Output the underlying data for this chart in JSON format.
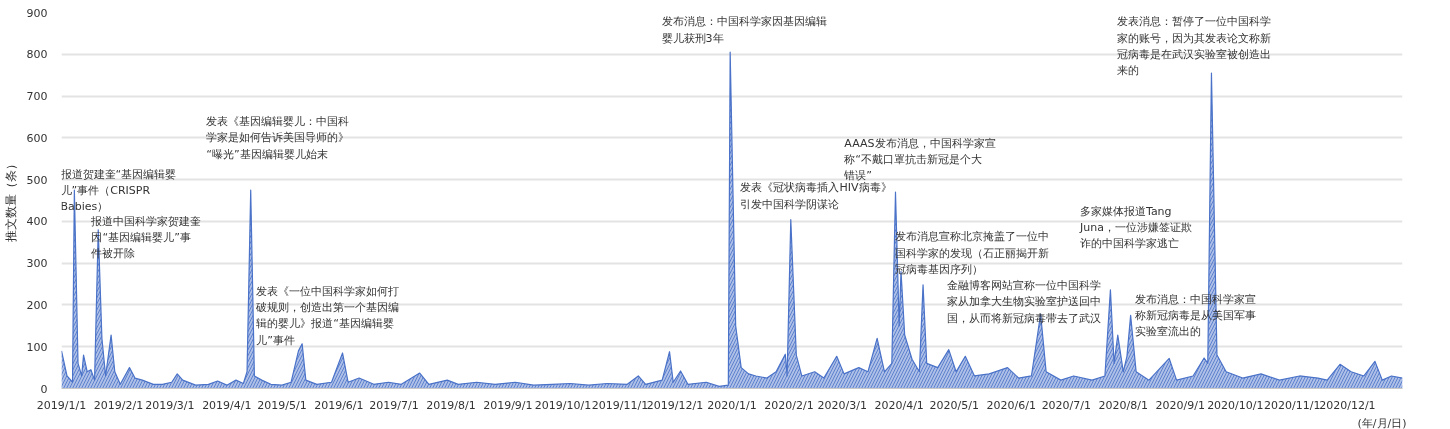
{
  "chart_data": {
    "type": "area",
    "xlabel": "(年/月/日)",
    "ylabel": "推文数量（条）",
    "color": "#4a72c8",
    "grid": "y",
    "x": [
      "2019-01-01",
      "2019-01-04",
      "2019-01-07",
      "2019-01-08",
      "2019-01-10",
      "2019-01-12",
      "2019-01-13",
      "2019-01-15",
      "2019-01-17",
      "2019-01-19",
      "2019-01-21",
      "2019-01-23",
      "2019-01-25",
      "2019-01-28",
      "2019-01-30",
      "2019-02-02",
      "2019-02-07",
      "2019-02-10",
      "2019-02-14",
      "2019-02-20",
      "2019-02-25",
      "2019-03-02",
      "2019-03-05",
      "2019-03-08",
      "2019-03-15",
      "2019-03-22",
      "2019-03-27",
      "2019-04-01",
      "2019-04-06",
      "2019-04-10",
      "2019-04-12",
      "2019-04-14",
      "2019-04-16",
      "2019-04-20",
      "2019-04-25",
      "2019-05-01",
      "2019-05-06",
      "2019-05-10",
      "2019-05-12",
      "2019-05-14",
      "2019-05-20",
      "2019-05-28",
      "2019-06-03",
      "2019-06-06",
      "2019-06-12",
      "2019-06-20",
      "2019-06-28",
      "2019-07-05",
      "2019-07-15",
      "2019-07-20",
      "2019-07-30",
      "2019-08-05",
      "2019-08-15",
      "2019-08-25",
      "2019-09-05",
      "2019-09-15",
      "2019-09-25",
      "2019-10-05",
      "2019-10-15",
      "2019-10-25",
      "2019-11-05",
      "2019-11-11",
      "2019-11-15",
      "2019-11-24",
      "2019-11-28",
      "2019-11-30",
      "2019-12-04",
      "2019-12-08",
      "2019-12-18",
      "2019-12-25",
      "2019-12-30",
      "2019-12-31",
      "2020-01-03",
      "2020-01-06",
      "2020-01-10",
      "2020-01-14",
      "2020-01-20",
      "2020-01-25",
      "2020-01-30",
      "2020-01-31",
      "2020-02-02",
      "2020-02-05",
      "2020-02-08",
      "2020-02-15",
      "2020-02-20",
      "2020-02-27",
      "2020-03-02",
      "2020-03-10",
      "2020-03-15",
      "2020-03-20",
      "2020-03-24",
      "2020-03-28",
      "2020-03-30",
      "2020-04-01",
      "2020-04-02",
      "2020-04-04",
      "2020-04-08",
      "2020-04-12",
      "2020-04-14",
      "2020-04-16",
      "2020-04-22",
      "2020-04-28",
      "2020-05-02",
      "2020-05-07",
      "2020-05-12",
      "2020-05-20",
      "2020-05-30",
      "2020-06-05",
      "2020-06-12",
      "2020-06-17",
      "2020-06-20",
      "2020-06-28",
      "2020-07-05",
      "2020-07-15",
      "2020-07-22",
      "2020-07-25",
      "2020-07-27",
      "2020-07-29",
      "2020-08-01",
      "2020-08-03",
      "2020-08-05",
      "2020-08-08",
      "2020-08-15",
      "2020-08-26",
      "2020-08-30",
      "2020-09-08",
      "2020-09-14",
      "2020-09-16",
      "2020-09-18",
      "2020-09-21",
      "2020-09-26",
      "2020-10-05",
      "2020-10-15",
      "2020-10-25",
      "2020-11-05",
      "2020-11-15",
      "2020-11-20",
      "2020-11-27",
      "2020-12-03",
      "2020-12-10",
      "2020-12-16",
      "2020-12-20",
      "2020-12-25",
      "2020-12-31"
    ],
    "values": [
      90,
      30,
      15,
      475,
      60,
      30,
      80,
      40,
      45,
      20,
      380,
      120,
      30,
      128,
      40,
      10,
      50,
      25,
      20,
      10,
      10,
      15,
      35,
      20,
      8,
      10,
      18,
      8,
      20,
      12,
      40,
      475,
      30,
      20,
      10,
      8,
      15,
      90,
      107,
      20,
      10,
      15,
      85,
      15,
      25,
      10,
      15,
      10,
      37,
      10,
      20,
      10,
      15,
      10,
      15,
      8,
      10,
      12,
      8,
      12,
      10,
      30,
      10,
      20,
      88,
      15,
      42,
      10,
      15,
      5,
      8,
      805,
      150,
      50,
      35,
      30,
      25,
      40,
      82,
      30,
      404,
      80,
      30,
      40,
      25,
      77,
      35,
      50,
      40,
      120,
      40,
      60,
      470,
      150,
      280,
      128,
      70,
      40,
      248,
      60,
      50,
      93,
      40,
      77,
      30,
      35,
      50,
      25,
      30,
      178,
      40,
      20,
      30,
      20,
      30,
      236,
      60,
      128,
      40,
      77,
      175,
      40,
      20,
      72,
      20,
      30,
      73,
      60,
      755,
      80,
      40,
      25,
      35,
      20,
      30,
      25,
      20,
      58,
      40,
      30,
      65,
      20,
      30,
      25
    ],
    "xlim": [
      "2019-01-01",
      "2020-12-31"
    ],
    "xticks": [
      {
        "value": "2019-01-01",
        "label": "2019/1/1"
      },
      {
        "value": "2019-02-01",
        "label": "2019/2/1"
      },
      {
        "value": "2019-03-01",
        "label": "2019/3/1"
      },
      {
        "value": "2019-04-01",
        "label": "2019/4/1"
      },
      {
        "value": "2019-05-01",
        "label": "2019/5/1"
      },
      {
        "value": "2019-06-01",
        "label": "2019/6/1"
      },
      {
        "value": "2019-07-01",
        "label": "2019/7/1"
      },
      {
        "value": "2019-08-01",
        "label": "2019/8/1"
      },
      {
        "value": "2019-09-01",
        "label": "2019/9/1"
      },
      {
        "value": "2019-10-01",
        "label": "2019/10/1"
      },
      {
        "value": "2019-11-01",
        "label": "2019/11/1"
      },
      {
        "value": "2019-12-01",
        "label": "2019/12/1"
      },
      {
        "value": "2020-01-01",
        "label": "2020/1/1"
      },
      {
        "value": "2020-02-01",
        "label": "2020/2/1"
      },
      {
        "value": "2020-03-01",
        "label": "2020/3/1"
      },
      {
        "value": "2020-04-01",
        "label": "2020/4/1"
      },
      {
        "value": "2020-05-01",
        "label": "2020/5/1"
      },
      {
        "value": "2020-06-01",
        "label": "2020/6/1"
      },
      {
        "value": "2020-07-01",
        "label": "2020/7/1"
      },
      {
        "value": "2020-08-01",
        "label": "2020/8/1"
      },
      {
        "value": "2020-09-01",
        "label": "2020/9/1"
      },
      {
        "value": "2020-10-01",
        "label": "2020/10/1"
      },
      {
        "value": "2020-11-01",
        "label": "2020/11/1"
      },
      {
        "value": "2020-12-01",
        "label": "2020/12/1"
      }
    ],
    "ylim": [
      0,
      900
    ],
    "yticks": [
      0,
      100,
      200,
      300,
      400,
      500,
      600,
      700,
      800,
      900
    ],
    "annotations": [
      "报道贺建奎“基因编辑婴儿”事件（CRISPR Babies）",
      "报道中国科学家贺建奎因“基因编辑婴儿”事件被开除",
      "发表《基因编辑婴儿：中国科学家是如何告诉美国导师的》“曝光”基因编辑婴儿始末",
      "发表《一位中国科学家如何打破规则，创造出第一个基因编辑的婴儿》报道“基因编辑婴儿”事件",
      "发布消息：中国科学家因基因编辑婴儿获刑3年",
      "发表《冠状病毒插入HIV病毒》引发中国科学阴谋论",
      "AAAS发布消息，中国科学家宣称“不戴口罩抗击新冠是个大错误”",
      "发布消息宣称北京掩盖了一位中国科学家的发现（石正丽揭开新冠病毒基因序列）",
      "金融博客网站宣称一位中国科学家从加拿大生物实验室护送回中国，从而将新冠病毒带去了武汉",
      "多家媒体报道Tang Juna，一位涉嫌签证欺诈的中国科学家逃亡",
      "发布消息：中国科学家宣称新冠病毒是从美国军事实验室流出的",
      "发表消息：暂停了一位中国科学家的账号，因为其发表论文称新冠病毒是在武汉实验室被创造出来的"
    ]
  }
}
